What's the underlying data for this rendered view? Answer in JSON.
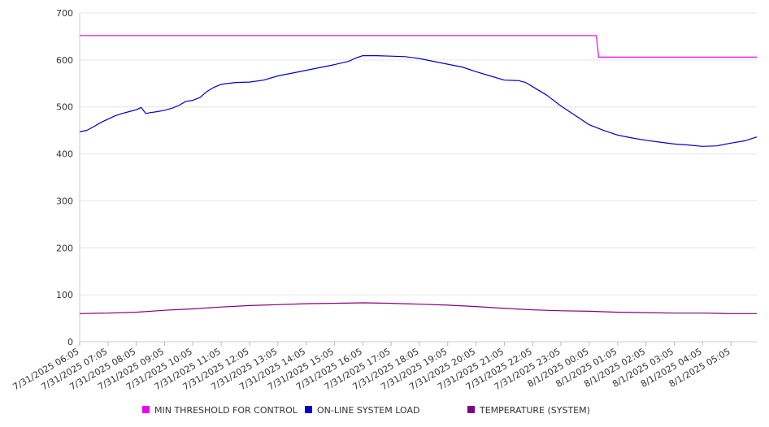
{
  "chart_data": {
    "type": "line",
    "title": "",
    "xlabel": "",
    "ylabel": "",
    "ylim": [
      0,
      700
    ],
    "yticks": [
      0,
      100,
      200,
      300,
      400,
      500,
      600,
      700
    ],
    "grid": true,
    "legend_position": "bottom",
    "x_tick_labels": [
      "7/31/2025 06:05",
      "7/31/2025 07:05",
      "7/31/2025 08:05",
      "7/31/2025 09:05",
      "7/31/2025 10:05",
      "7/31/2025 11:05",
      "7/31/2025 12:05",
      "7/31/2025 13:05",
      "7/31/2025 14:05",
      "7/31/2025 15:05",
      "7/31/2025 16:05",
      "7/31/2025 17:05",
      "7/31/2025 18:05",
      "7/31/2025 19:05",
      "7/31/2025 20:05",
      "7/31/2025 21:05",
      "7/31/2025 22:05",
      "7/31/2025 23:05",
      "8/1/2025 00:05",
      "8/1/2025 01:05",
      "8/1/2025 02:05",
      "8/1/2025 03:05",
      "8/1/2025 04:05",
      "8/1/2025 05:05"
    ],
    "x_range": [
      "7/31/2025 06:05",
      "8/1/2025 06:00"
    ],
    "series": [
      {
        "name": "MIN THRESHOLD FOR CONTROL",
        "color": "#ee00ee",
        "points": [
          [
            "7/31/2025 06:05",
            652
          ],
          [
            "7/31/2025 12:05",
            652
          ],
          [
            "7/31/2025 18:05",
            652
          ],
          [
            "8/1/2025 00:20",
            652
          ],
          [
            "8/1/2025 00:25",
            606
          ],
          [
            "8/1/2025 03:05",
            606
          ],
          [
            "8/1/2025 06:00",
            606
          ]
        ]
      },
      {
        "name": "ON-LINE SYSTEM LOAD",
        "color": "#0000cc",
        "points": [
          [
            "7/31/2025 06:05",
            447
          ],
          [
            "7/31/2025 06:20",
            450
          ],
          [
            "7/31/2025 06:35",
            458
          ],
          [
            "7/31/2025 06:50",
            467
          ],
          [
            "7/31/2025 07:05",
            474
          ],
          [
            "7/31/2025 07:20",
            481
          ],
          [
            "7/31/2025 07:35",
            486
          ],
          [
            "7/31/2025 07:50",
            490
          ],
          [
            "7/31/2025 08:05",
            494
          ],
          [
            "7/31/2025 08:15",
            499
          ],
          [
            "7/31/2025 08:25",
            486
          ],
          [
            "7/31/2025 08:35",
            488
          ],
          [
            "7/31/2025 08:50",
            490
          ],
          [
            "7/31/2025 09:05",
            493
          ],
          [
            "7/31/2025 09:20",
            497
          ],
          [
            "7/31/2025 09:35",
            503
          ],
          [
            "7/31/2025 09:50",
            512
          ],
          [
            "7/31/2025 10:05",
            514
          ],
          [
            "7/31/2025 10:20",
            520
          ],
          [
            "7/31/2025 10:35",
            533
          ],
          [
            "7/31/2025 10:50",
            542
          ],
          [
            "7/31/2025 11:05",
            548
          ],
          [
            "7/31/2025 11:35",
            552
          ],
          [
            "7/31/2025 12:05",
            553
          ],
          [
            "7/31/2025 12:35",
            557
          ],
          [
            "7/31/2025 13:05",
            566
          ],
          [
            "7/31/2025 13:35",
            572
          ],
          [
            "7/31/2025 14:05",
            578
          ],
          [
            "7/31/2025 14:35",
            584
          ],
          [
            "7/31/2025 15:05",
            590
          ],
          [
            "7/31/2025 15:35",
            597
          ],
          [
            "7/31/2025 15:50",
            604
          ],
          [
            "7/31/2025 16:05",
            609
          ],
          [
            "7/31/2025 16:35",
            609
          ],
          [
            "7/31/2025 17:05",
            608
          ],
          [
            "7/31/2025 17:35",
            607
          ],
          [
            "7/31/2025 18:05",
            603
          ],
          [
            "7/31/2025 18:35",
            597
          ],
          [
            "7/31/2025 19:05",
            591
          ],
          [
            "7/31/2025 19:35",
            585
          ],
          [
            "7/31/2025 20:05",
            575
          ],
          [
            "7/31/2025 20:35",
            566
          ],
          [
            "7/31/2025 21:05",
            557
          ],
          [
            "7/31/2025 21:35",
            556
          ],
          [
            "7/31/2025 21:50",
            552
          ],
          [
            "7/31/2025 22:05",
            543
          ],
          [
            "7/31/2025 22:35",
            525
          ],
          [
            "7/31/2025 23:05",
            502
          ],
          [
            "7/31/2025 23:35",
            482
          ],
          [
            "8/1/2025 00:05",
            462
          ],
          [
            "8/1/2025 00:35",
            450
          ],
          [
            "8/1/2025 01:05",
            440
          ],
          [
            "8/1/2025 01:35",
            434
          ],
          [
            "8/1/2025 02:05",
            429
          ],
          [
            "8/1/2025 02:35",
            425
          ],
          [
            "8/1/2025 03:05",
            421
          ],
          [
            "8/1/2025 03:35",
            419
          ],
          [
            "8/1/2025 04:05",
            416
          ],
          [
            "8/1/2025 04:35",
            417
          ],
          [
            "8/1/2025 05:05",
            423
          ],
          [
            "8/1/2025 05:35",
            428
          ],
          [
            "8/1/2025 06:00",
            436
          ]
        ]
      },
      {
        "name": "TEMPERATURE (SYSTEM)",
        "color": "#800080",
        "points": [
          [
            "7/31/2025 06:05",
            60
          ],
          [
            "7/31/2025 07:05",
            61
          ],
          [
            "7/31/2025 08:05",
            63
          ],
          [
            "7/31/2025 09:05",
            67
          ],
          [
            "7/31/2025 10:05",
            70
          ],
          [
            "7/31/2025 11:05",
            74
          ],
          [
            "7/31/2025 12:05",
            77
          ],
          [
            "7/31/2025 13:05",
            79
          ],
          [
            "7/31/2025 14:05",
            81
          ],
          [
            "7/31/2025 15:05",
            82
          ],
          [
            "7/31/2025 16:05",
            83
          ],
          [
            "7/31/2025 17:05",
            82
          ],
          [
            "7/31/2025 18:05",
            80
          ],
          [
            "7/31/2025 19:05",
            78
          ],
          [
            "7/31/2025 20:05",
            75
          ],
          [
            "7/31/2025 21:05",
            71
          ],
          [
            "7/31/2025 22:05",
            68
          ],
          [
            "7/31/2025 23:05",
            66
          ],
          [
            "8/1/2025 00:05",
            65
          ],
          [
            "8/1/2025 01:05",
            63
          ],
          [
            "8/1/2025 02:05",
            62
          ],
          [
            "8/1/2025 03:05",
            61
          ],
          [
            "8/1/2025 04:05",
            61
          ],
          [
            "8/1/2025 05:05",
            60
          ],
          [
            "8/1/2025 06:00",
            60
          ]
        ]
      }
    ]
  },
  "legend": {
    "items": [
      {
        "label": "MIN THRESHOLD FOR CONTROL",
        "color": "#ee00ee"
      },
      {
        "label": "ON-LINE SYSTEM LOAD",
        "color": "#0000cc"
      },
      {
        "label": "TEMPERATURE (SYSTEM)",
        "color": "#800080"
      }
    ]
  }
}
